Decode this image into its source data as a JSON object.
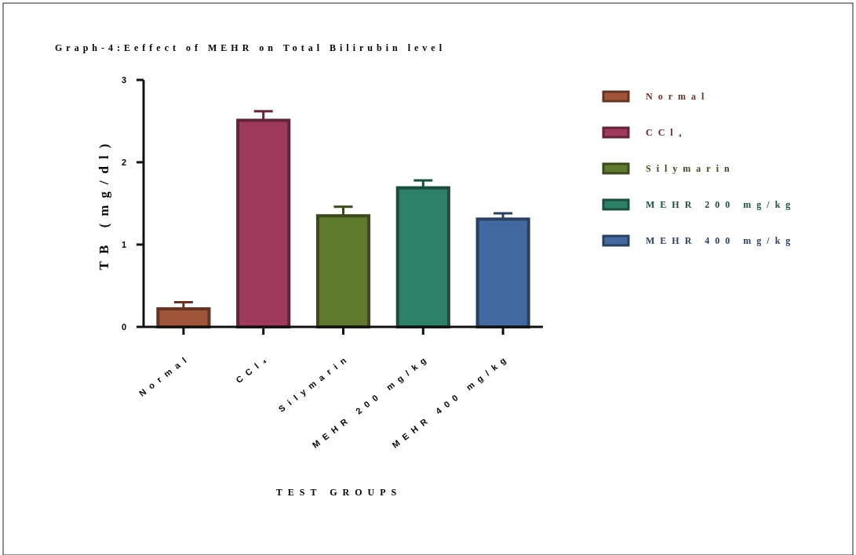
{
  "chart_data": {
    "type": "bar",
    "title": "Graph-4:Eeffect of MEHR on Total Bilirubin  level",
    "xlabel": "TEST GROUPS",
    "ylabel": "TB (mg/dl)",
    "categories": [
      "Normal",
      "CCl₄",
      "Silymarin",
      "MEHR 200 mg/kg",
      "MEHR 400 mg/kg"
    ],
    "series": [
      {
        "name": "Normal",
        "color": "#a0553a",
        "values": [
          0.22,
          null,
          null,
          null,
          null
        ],
        "errors": [
          [
            0.22,
            0.3
          ],
          null,
          null,
          null,
          null
        ]
      },
      {
        "name": "CCl₄",
        "color": "#9e3a5c",
        "values": [
          null,
          2.51,
          null,
          null,
          null
        ],
        "errors": [
          null,
          [
            2.51,
            2.62
          ],
          null,
          null,
          null
        ]
      },
      {
        "name": "Silymarin",
        "color": "#5f7a2e",
        "values": [
          null,
          null,
          1.35,
          null,
          null
        ],
        "errors": [
          null,
          null,
          [
            1.35,
            1.46
          ],
          null,
          null
        ]
      },
      {
        "name": "MEHR 200 mg/kg",
        "color": "#2e8068",
        "values": [
          null,
          null,
          null,
          1.69,
          null
        ],
        "errors": [
          null,
          null,
          null,
          [
            1.69,
            1.78
          ],
          null
        ]
      },
      {
        "name": "MEHR 400 mg/kg",
        "color": "#4469a0",
        "values": [
          null,
          null,
          null,
          null,
          1.31
        ],
        "errors": [
          null,
          null,
          null,
          null,
          [
            1.31,
            1.38
          ]
        ]
      }
    ],
    "ylim": [
      0,
      3
    ],
    "yticks": [
      0,
      1,
      2,
      3
    ],
    "grid": false,
    "legend": "right"
  }
}
